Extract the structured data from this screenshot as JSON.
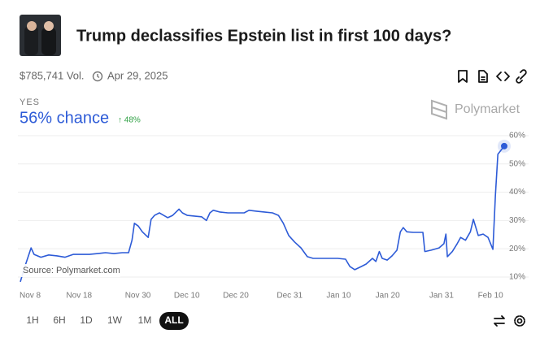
{
  "header": {
    "title": "Trump declassifies Epstein list in first 100 days?",
    "volume": "$785,741 Vol.",
    "date": "Apr 29, 2025"
  },
  "outcome": {
    "label": "YES",
    "chance": "56% chance",
    "change": "↑ 48%"
  },
  "brand": "Polymarket",
  "source": "Source: Polymarket.com",
  "ranges": [
    "1H",
    "6H",
    "1D",
    "1W",
    "1M",
    "ALL"
  ],
  "chart_data": {
    "type": "line",
    "x": [
      0,
      0.8,
      2.2,
      2.8,
      4.2,
      5.8,
      7.5,
      9.1,
      10.8,
      12.5,
      14.1,
      15.8,
      17.4,
      19.1,
      20.8,
      22.1,
      22.8,
      23.3,
      24.1,
      24.9,
      26.1,
      26.7,
      27.4,
      28.4,
      29.1,
      30.1,
      31.1,
      32.4,
      33.1,
      34.1,
      35.7,
      37,
      38,
      38.7,
      39.4,
      40.7,
      42.4,
      44,
      45.7,
      46.7,
      48.2,
      49.8,
      51.5,
      52.7,
      53.7,
      54.8,
      56,
      57.3,
      58.6,
      59.8,
      61.5,
      63.1,
      64.8,
      66.4,
      67.3,
      68.3,
      69.6,
      70.6,
      71.9,
      72.6,
      73.3,
      73.9,
      74.9,
      75.9,
      76.9,
      77.6,
      78.2,
      78.9,
      80.2,
      81.6,
      82.2,
      82.6,
      83.9,
      85.5,
      86.5,
      86.9,
      87.2,
      88.2,
      89.2,
      89.9,
      90.9,
      91.9,
      92.5,
      93.5,
      94.5,
      95.5,
      96.5,
      97,
      97.5,
      98.8
    ],
    "series": [
      {
        "name": "Yes",
        "color": "#2d5bd7",
        "values": [
          8.3,
          13,
          20.3,
          18,
          17,
          17.8,
          17.5,
          17,
          18,
          18,
          18,
          18.3,
          18.6,
          18.3,
          18.6,
          18.6,
          23,
          29,
          28,
          26,
          24,
          30.4,
          31.8,
          32.7,
          32,
          31,
          31.8,
          34,
          32.7,
          31.8,
          31.5,
          31.3,
          30,
          32.7,
          33.6,
          33,
          32.7,
          32.7,
          32.7,
          33.6,
          33.3,
          33,
          32.7,
          31.8,
          29,
          24.7,
          22.4,
          20.3,
          17.2,
          16.6,
          16.6,
          16.6,
          16.6,
          16.3,
          13.7,
          12.6,
          13.7,
          14.6,
          16.6,
          15.5,
          19,
          16.6,
          16,
          17.5,
          19.5,
          26,
          27.5,
          26,
          25.8,
          25.8,
          25.8,
          19,
          19.5,
          20.3,
          21.8,
          25.2,
          17.2,
          19,
          21.8,
          24,
          23,
          26,
          30.4,
          24.7,
          25.2,
          24,
          19.8,
          39,
          53.4,
          56.3
        ]
      }
    ],
    "xlim": [
      0,
      98.8
    ],
    "xticks": [
      {
        "value": 2,
        "label": "Nov 8"
      },
      {
        "value": 12,
        "label": "Nov 18"
      },
      {
        "value": 24,
        "label": "Nov 30"
      },
      {
        "value": 34,
        "label": "Dec 10"
      },
      {
        "value": 44,
        "label": "Dec 20"
      },
      {
        "value": 55,
        "label": "Dec 31"
      },
      {
        "value": 65,
        "label": "Jan 10"
      },
      {
        "value": 75,
        "label": "Jan 20"
      },
      {
        "value": 86,
        "label": "Jan 31"
      },
      {
        "value": 96,
        "label": "Feb 10"
      }
    ],
    "ylim": [
      7,
      62
    ],
    "yticks": [
      {
        "value": 10,
        "label": "10%"
      },
      {
        "value": 20,
        "label": "20%"
      },
      {
        "value": 30,
        "label": "30%"
      },
      {
        "value": 40,
        "label": "40%"
      },
      {
        "value": 50,
        "label": "50%"
      },
      {
        "value": 60,
        "label": "60%"
      }
    ],
    "grid": true
  }
}
